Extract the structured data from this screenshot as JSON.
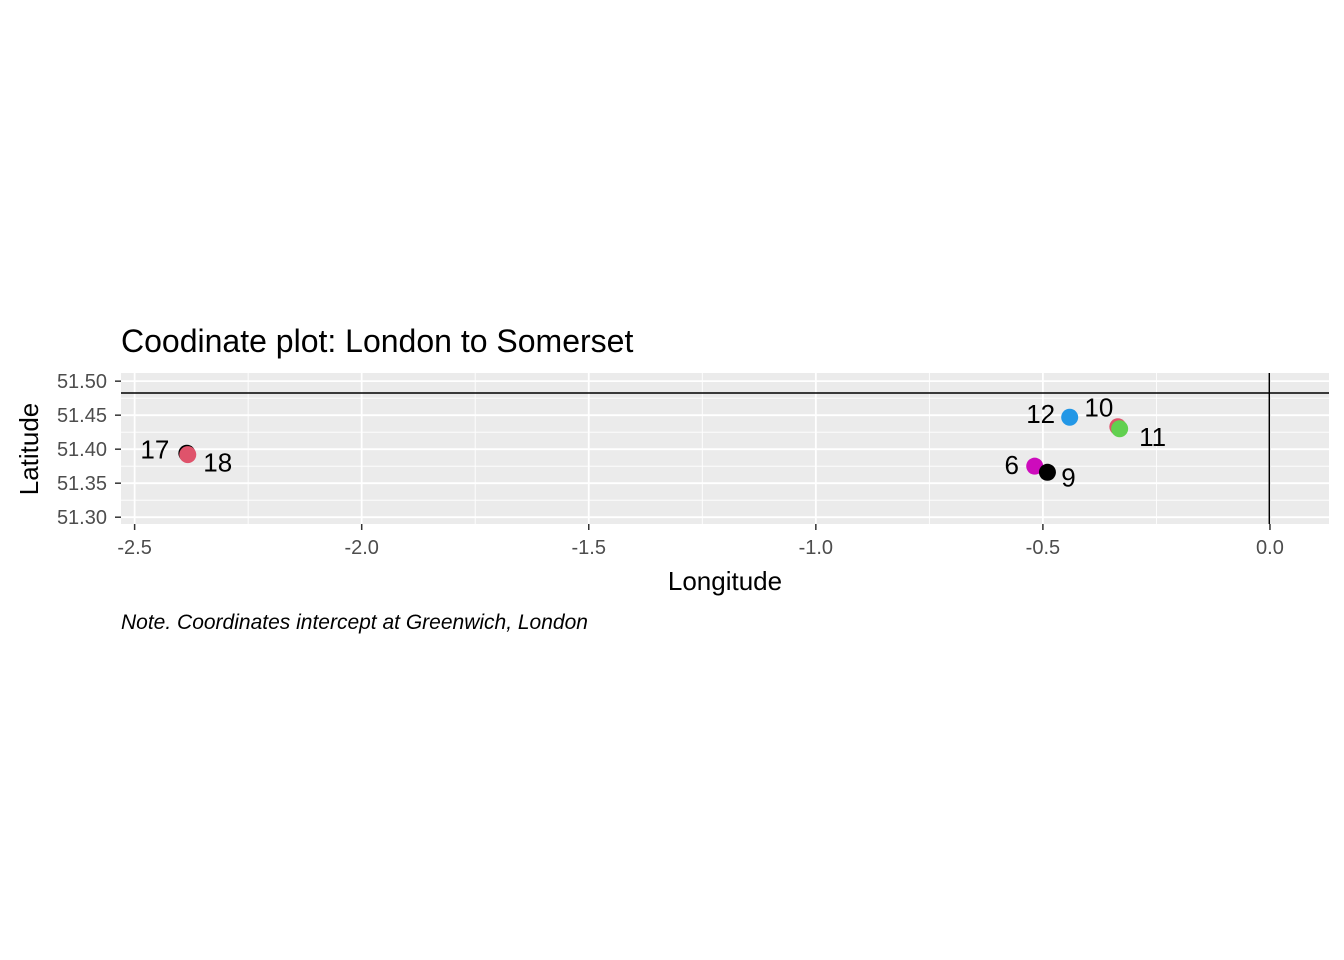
{
  "chart_data": {
    "type": "scatter",
    "title": "Coodinate plot: London to Somerset",
    "xlabel": "Longitude",
    "ylabel": "Latitude",
    "caption": "Note. Coordinates intercept at Greenwich, London",
    "xlim": [
      -2.53,
      0.13
    ],
    "ylim": [
      51.29,
      51.512
    ],
    "x_ticks": [
      -2.5,
      -2.0,
      -1.5,
      -1.0,
      -0.5,
      0.0
    ],
    "x_tick_labels": [
      "-2.5",
      "-2.0",
      "-1.5",
      "-1.0",
      "-0.5",
      "0.0"
    ],
    "y_ticks": [
      51.3,
      51.35,
      51.4,
      51.45,
      51.5
    ],
    "y_tick_labels": [
      "51.30",
      "51.35",
      "51.40",
      "51.45",
      "51.50"
    ],
    "reference_lines": {
      "hline_y": 51.4826,
      "vline_x": -0.0014
    },
    "grid": true,
    "points": [
      {
        "label": "17",
        "x": -2.385,
        "y": 51.394,
        "color": "#000000"
      },
      {
        "label": "18",
        "x": -2.383,
        "y": 51.392,
        "color": "#DF536B"
      },
      {
        "label": "12",
        "x": -0.441,
        "y": 51.447,
        "color": "#2297E6"
      },
      {
        "label": "10",
        "x": -0.335,
        "y": 51.433,
        "color": "#DF536B"
      },
      {
        "label": "11",
        "x": -0.331,
        "y": 51.43,
        "color": "#61D04F"
      },
      {
        "label": "6",
        "x": -0.518,
        "y": 51.375,
        "color": "#CD0BBC"
      },
      {
        "label": "9",
        "x": -0.49,
        "y": 51.366,
        "color": "#000000"
      }
    ]
  }
}
